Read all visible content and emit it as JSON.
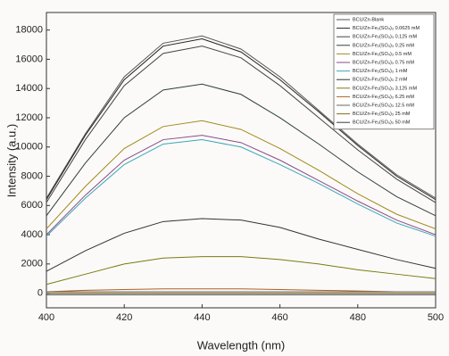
{
  "chart_data": {
    "type": "line",
    "x_label": "Wavelength (nm)",
    "y_label": "Intensity (a.u.)",
    "x": [
      400,
      410,
      420,
      430,
      440,
      450,
      460,
      470,
      480,
      490,
      500
    ],
    "xlim": [
      400,
      500
    ],
    "xticks": [
      400,
      420,
      440,
      460,
      480,
      500
    ],
    "ylim": [
      -1000,
      19200
    ],
    "yticks": [
      0,
      2000,
      4000,
      6000,
      8000,
      10000,
      12000,
      14000,
      16000,
      18000
    ],
    "legend": "upper right",
    "series": [
      {
        "name": "BCU/Zn-Blank",
        "color": "#555555",
        "values": [
          6500,
          10900,
          14800,
          17100,
          17600,
          16700,
          14800,
          12500,
          10200,
          8100,
          6500
        ]
      },
      {
        "name": "BCU/Zn-Fe₂(SO₄)₃ 0.0625 mM",
        "color": "#222222",
        "values": [
          6400,
          10800,
          14600,
          16900,
          17400,
          16500,
          14600,
          12400,
          10100,
          8000,
          6400
        ]
      },
      {
        "name": "BCU/Zn-Fe₂(SO₄)₃ 0.125 mM",
        "color": "#444444",
        "values": [
          6200,
          10500,
          14200,
          16400,
          16900,
          16100,
          14200,
          12000,
          9800,
          7800,
          6200
        ]
      },
      {
        "name": "BCU/Zn-Fe₂(SO₄)₃ 0.25 mM",
        "color": "#2f3f3f",
        "values": [
          5300,
          8900,
          12000,
          13900,
          14300,
          13600,
          12000,
          10200,
          8300,
          6600,
          5300
        ]
      },
      {
        "name": "BCU/Zn-Fe₂(SO₄)₃ 0.5 mM",
        "color": "#a08a20",
        "values": [
          4400,
          7300,
          9900,
          11400,
          11800,
          11200,
          9900,
          8400,
          6800,
          5400,
          4400
        ]
      },
      {
        "name": "BCU/Zn-Fe₂(SO₄)₃ 0.75 mM",
        "color": "#8a4a8a",
        "values": [
          4000,
          6700,
          9100,
          10500,
          10800,
          10300,
          9100,
          7700,
          6300,
          5000,
          4000
        ]
      },
      {
        "name": "BCU/Zn-Fe₂(SO₄)₃ 1 mM",
        "color": "#3aa8b8",
        "values": [
          3900,
          6500,
          8800,
          10200,
          10500,
          10000,
          8800,
          7500,
          6100,
          4800,
          3900
        ]
      },
      {
        "name": "BCU/Zn-Fe₂(SO₄)₃ 2 mM",
        "color": "#333333",
        "values": [
          1500,
          2900,
          4100,
          4900,
          5100,
          5000,
          4500,
          3700,
          3000,
          2300,
          1700
        ]
      },
      {
        "name": "BCU/Zn-Fe₂(SO₄)₃ 3.125 mM",
        "color": "#7a7a10",
        "values": [
          600,
          1300,
          2000,
          2400,
          2500,
          2500,
          2300,
          2000,
          1600,
          1300,
          1000
        ]
      },
      {
        "name": "BCU/Zn-Fe₂(SO₄)₃ 6.25 mM",
        "color": "#b06020",
        "values": [
          100,
          200,
          250,
          300,
          300,
          300,
          250,
          200,
          150,
          100,
          100
        ]
      },
      {
        "name": "BCU/Zn-Fe₂(SO₄)₃ 12.5 mM",
        "color": "#666666",
        "values": [
          100,
          100,
          100,
          100,
          100,
          100,
          100,
          100,
          100,
          100,
          100
        ]
      },
      {
        "name": "BCU/Zn-Fe₂(SO₄)₃ 25 mM",
        "color": "#8a6a20",
        "values": [
          0,
          0,
          0,
          0,
          0,
          0,
          0,
          0,
          0,
          0,
          0
        ]
      },
      {
        "name": "BCU/Zn-Fe₂(SO₄)₃ 50 mM",
        "color": "#3a3a3a",
        "values": [
          -100,
          -100,
          -100,
          -100,
          -100,
          -100,
          -100,
          -100,
          -100,
          -100,
          -100
        ]
      }
    ]
  }
}
